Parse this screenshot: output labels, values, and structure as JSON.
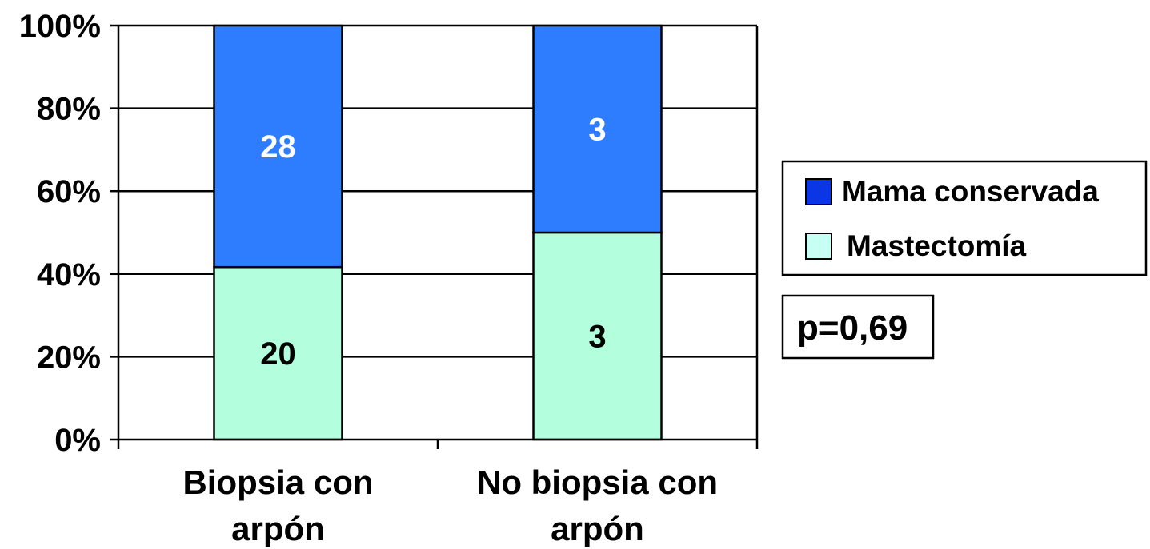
{
  "chart_data": {
    "type": "bar",
    "stacked": true,
    "normalized": true,
    "categories": [
      [
        "Biopsia con",
        "arpón"
      ],
      [
        "No biopsia con",
        "arpón"
      ]
    ],
    "series": [
      {
        "name": "Mastectomía",
        "values": [
          20,
          3
        ],
        "color": "#b3ffdd",
        "label_color": "#000000"
      },
      {
        "name": "Mama conservada",
        "values": [
          28,
          3
        ],
        "color": "#2f7dff",
        "label_color": "#ffffff"
      }
    ],
    "legend_order": [
      "Mama conservada",
      "Mastectomía"
    ],
    "legend_swatch_colors": {
      "Mama conservada": "#0a36e6",
      "Mastectomía": "#c8fff4"
    },
    "y_ticks": [
      "0%",
      "20%",
      "40%",
      "60%",
      "80%",
      "100%"
    ],
    "ylim": [
      0,
      100
    ],
    "grid": true,
    "legend_position": "right",
    "annotation": "p=0,69"
  }
}
